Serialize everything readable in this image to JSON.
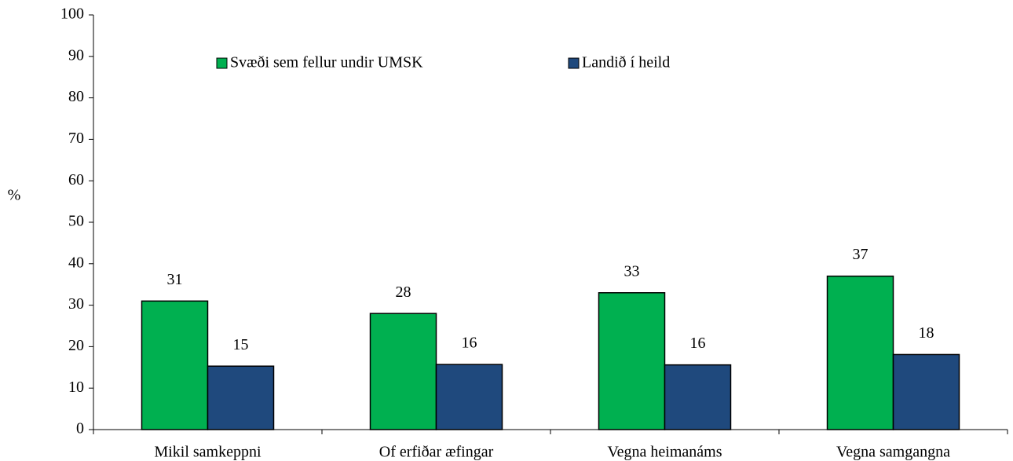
{
  "chart_data": {
    "type": "bar",
    "categories": [
      "Mikil samkeppni",
      "Of erfiðar æfingar",
      "Vegna heimanáms",
      "Vegna samgangna"
    ],
    "series": [
      {
        "name": "Svæði sem fellur undir UMSK",
        "color": "#00b050",
        "values": [
          31,
          28,
          33,
          37
        ]
      },
      {
        "name": "Landið í heild",
        "color": "#1f497d",
        "values": [
          15.3,
          15.7,
          15.6,
          18.1
        ],
        "value_labels": [
          "15",
          "16",
          "16",
          "18"
        ]
      }
    ],
    "y_label": "%",
    "ylim": [
      0,
      100
    ],
    "yticks": [
      0,
      10,
      20,
      30,
      40,
      50,
      60,
      70,
      80,
      90,
      100
    ],
    "grid": false
  }
}
